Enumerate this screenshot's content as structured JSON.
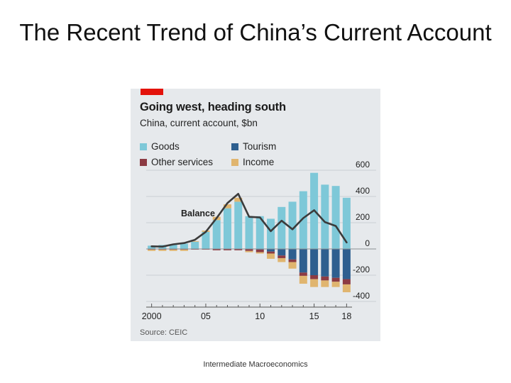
{
  "slide": {
    "title": "The Recent Trend of China’s Current Account",
    "footer": "Intermediate Macroeconomics"
  },
  "colors": {
    "goods": "#7ec8d8",
    "tourism": "#2e5f8f",
    "other_services": "#8c3b43",
    "income": "#e0b56f",
    "balance": "#3b3b3b",
    "accent": "#e3120b"
  },
  "chart_data": {
    "type": "bar",
    "title": "Going west, heading south",
    "subtitle": "China, current account, $bn",
    "source": "Source: CEIC",
    "legend": [
      "Goods",
      "Tourism",
      "Other services",
      "Income"
    ],
    "balance_label": "Balance",
    "x_tick_labels": [
      "2000",
      "05",
      "10",
      "15",
      "18"
    ],
    "y_tick_labels": [
      "600",
      "400",
      "200",
      "0",
      "-200",
      "-400"
    ],
    "ylim": [
      -400,
      600
    ],
    "y_ticks": [
      600,
      400,
      200,
      0,
      -200,
      -400
    ],
    "years": [
      2000,
      2001,
      2002,
      2003,
      2004,
      2005,
      2006,
      2007,
      2008,
      2009,
      2010,
      2011,
      2012,
      2013,
      2014,
      2015,
      2016,
      2017,
      2018
    ],
    "series": [
      {
        "name": "Goods",
        "values": [
          25,
          30,
          35,
          40,
          55,
          130,
          220,
          310,
          360,
          250,
          250,
          230,
          320,
          360,
          440,
          580,
          490,
          480,
          390
        ]
      },
      {
        "name": "Tourism",
        "values": [
          0,
          0,
          0,
          0,
          0,
          0,
          0,
          0,
          0,
          0,
          -5,
          -20,
          -50,
          -80,
          -180,
          -200,
          -210,
          -220,
          -230
        ]
      },
      {
        "name": "Other services",
        "values": [
          -5,
          -5,
          -5,
          -5,
          -5,
          -5,
          -10,
          -10,
          -10,
          -15,
          -20,
          -15,
          -20,
          -20,
          -25,
          -30,
          -30,
          -30,
          -40
        ]
      },
      {
        "name": "Income",
        "values": [
          -10,
          -10,
          -10,
          -10,
          5,
          10,
          25,
          30,
          30,
          -10,
          -10,
          -40,
          -30,
          -50,
          -60,
          -60,
          -50,
          -40,
          -60
        ]
      }
    ],
    "balance": [
      20,
      18,
      35,
      45,
      70,
      130,
      235,
      350,
      420,
      245,
      240,
      135,
      215,
      150,
      235,
      295,
      205,
      175,
      50
    ]
  }
}
